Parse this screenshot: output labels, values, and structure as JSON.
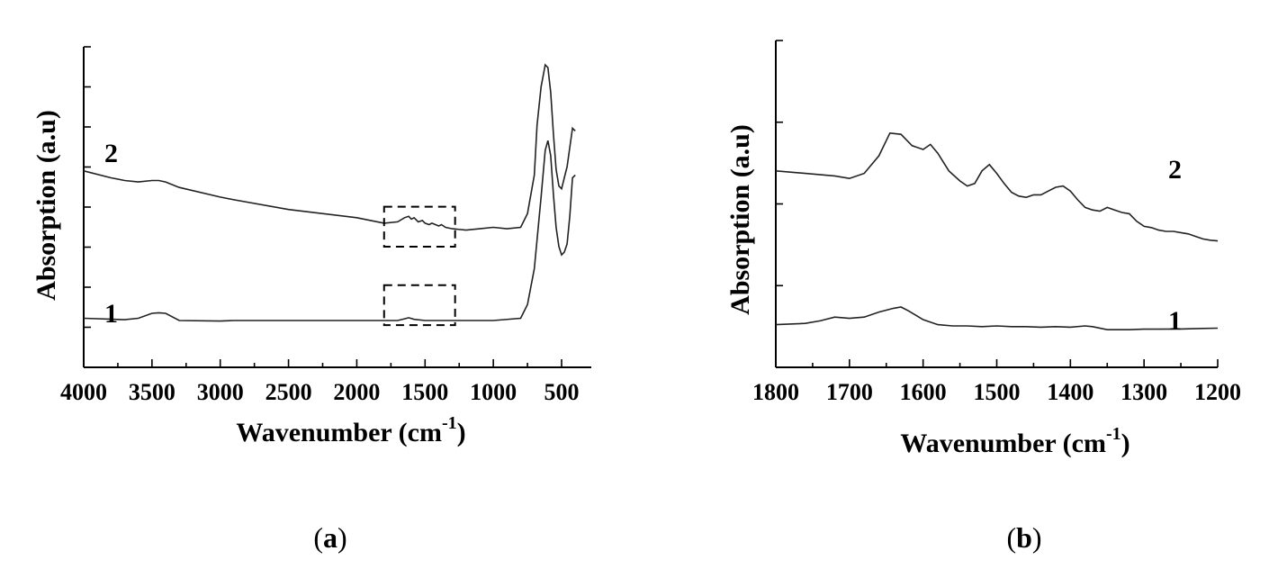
{
  "chart_data": [
    {
      "panel": "a",
      "type": "line",
      "caption": {
        "open": "(",
        "letter": "a",
        "close": ")"
      },
      "xlabel": {
        "main": "Wavenumber (cm",
        "sup": "-1",
        "tail": ")"
      },
      "ylabel": "Absorption (a.u)",
      "x_reversed": true,
      "xlim": [
        4000,
        400
      ],
      "ylim": [
        0,
        10
      ],
      "xticks": [
        4000,
        3500,
        3000,
        2500,
        2000,
        1500,
        1000,
        500
      ],
      "yticks_labeled": false,
      "series": [
        {
          "name": "1",
          "x": [
            4000,
            3700,
            3600,
            3500,
            3450,
            3400,
            3300,
            3000,
            2900,
            2500,
            2000,
            1700,
            1650,
            1620,
            1580,
            1500,
            1400,
            1300,
            1200,
            1000,
            800,
            750,
            700,
            650,
            620,
            600,
            580,
            560,
            540,
            520,
            500,
            480,
            460,
            440,
            420,
            400
          ],
          "y": [
            0.8,
            0.75,
            0.8,
            0.98,
            1.0,
            0.98,
            0.72,
            0.7,
            0.72,
            0.72,
            0.72,
            0.72,
            0.78,
            0.82,
            0.76,
            0.72,
            0.72,
            0.72,
            0.72,
            0.72,
            0.8,
            1.3,
            2.6,
            5.2,
            6.9,
            7.25,
            6.7,
            5.3,
            4.1,
            3.4,
            3.1,
            3.2,
            3.5,
            4.5,
            5.9,
            6.0
          ]
        },
        {
          "name": "2",
          "x": [
            4000,
            3800,
            3700,
            3600,
            3500,
            3450,
            3400,
            3300,
            3000,
            2900,
            2500,
            2000,
            1800,
            1700,
            1650,
            1620,
            1600,
            1580,
            1550,
            1520,
            1500,
            1470,
            1450,
            1400,
            1380,
            1350,
            1300,
            1200,
            1100,
            1000,
            900,
            800,
            750,
            700,
            680,
            650,
            620,
            600,
            580,
            560,
            540,
            520,
            500,
            480,
            460,
            440,
            420,
            400
          ],
          "y": [
            6.15,
            5.9,
            5.8,
            5.75,
            5.8,
            5.8,
            5.75,
            5.55,
            5.2,
            5.1,
            4.75,
            4.45,
            4.25,
            4.3,
            4.45,
            4.5,
            4.4,
            4.45,
            4.3,
            4.35,
            4.25,
            4.2,
            4.25,
            4.15,
            4.2,
            4.1,
            4.05,
            4.0,
            4.05,
            4.1,
            4.05,
            4.1,
            4.6,
            6.0,
            7.8,
            9.2,
            10.0,
            9.9,
            9.0,
            7.5,
            6.2,
            5.6,
            5.5,
            5.9,
            6.3,
            7.0,
            7.7,
            7.6
          ]
        }
      ],
      "series_labels": [
        {
          "text": "1",
          "series": "1"
        },
        {
          "text": "2",
          "series": "2"
        }
      ],
      "annotations": [
        {
          "type": "dashed-box",
          "x_range": [
            1800,
            1280
          ],
          "y_range": [
            3.4,
            4.85
          ],
          "series": "2"
        },
        {
          "type": "dashed-box",
          "x_range": [
            1800,
            1280
          ],
          "y_range": [
            0.55,
            2.0
          ],
          "series": "1"
        }
      ]
    },
    {
      "panel": "b",
      "type": "line",
      "caption": {
        "open": "(",
        "letter": "b",
        "close": ")"
      },
      "xlabel": {
        "main": "Wavenumber (cm",
        "sup": "-1",
        "tail": ")"
      },
      "ylabel": "Absorption (a.u)",
      "x_reversed": true,
      "xlim": [
        1800,
        1200
      ],
      "ylim": [
        0,
        10
      ],
      "xticks": [
        1800,
        1700,
        1600,
        1500,
        1400,
        1300,
        1200
      ],
      "yticks_labeled": false,
      "series": [
        {
          "name": "1",
          "x": [
            1800,
            1760,
            1740,
            1720,
            1700,
            1680,
            1660,
            1640,
            1630,
            1620,
            1600,
            1580,
            1560,
            1540,
            1520,
            1500,
            1480,
            1460,
            1440,
            1420,
            1400,
            1380,
            1370,
            1350,
            1320,
            1300,
            1280,
            1250,
            1220,
            1200
          ],
          "y": [
            0.8,
            0.85,
            0.95,
            1.1,
            1.05,
            1.1,
            1.3,
            1.45,
            1.5,
            1.35,
            1.0,
            0.8,
            0.75,
            0.75,
            0.72,
            0.75,
            0.72,
            0.72,
            0.7,
            0.72,
            0.7,
            0.75,
            0.72,
            0.6,
            0.6,
            0.62,
            0.62,
            0.63,
            0.65,
            0.66
          ]
        },
        {
          "name": "2",
          "x": [
            1800,
            1760,
            1720,
            1700,
            1680,
            1660,
            1645,
            1630,
            1615,
            1600,
            1590,
            1580,
            1565,
            1550,
            1540,
            1530,
            1520,
            1510,
            1500,
            1490,
            1480,
            1470,
            1460,
            1450,
            1440,
            1430,
            1420,
            1410,
            1400,
            1390,
            1380,
            1370,
            1360,
            1350,
            1340,
            1330,
            1320,
            1310,
            1300,
            1290,
            1280,
            1270,
            1260,
            1250,
            1240,
            1230,
            1220,
            1210,
            1200
          ],
          "y": [
            6.9,
            6.8,
            6.7,
            6.6,
            6.8,
            7.5,
            8.4,
            8.35,
            7.9,
            7.75,
            7.95,
            7.6,
            6.9,
            6.5,
            6.3,
            6.4,
            6.9,
            7.15,
            6.8,
            6.4,
            6.05,
            5.9,
            5.85,
            5.95,
            5.95,
            6.1,
            6.25,
            6.3,
            6.1,
            5.75,
            5.45,
            5.35,
            5.3,
            5.45,
            5.35,
            5.25,
            5.2,
            4.9,
            4.7,
            4.65,
            4.55,
            4.5,
            4.5,
            4.45,
            4.4,
            4.3,
            4.2,
            4.15,
            4.12
          ]
        }
      ],
      "series_labels": [
        {
          "text": "2",
          "series": "2"
        },
        {
          "text": "1",
          "series": "1"
        }
      ],
      "annotations": []
    }
  ]
}
